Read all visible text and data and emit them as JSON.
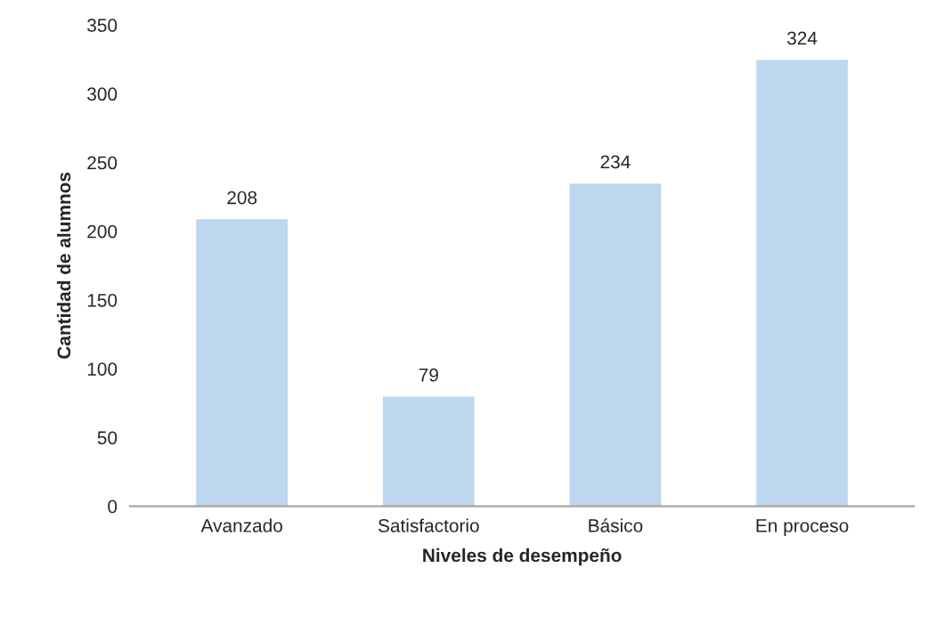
{
  "chart_data": {
    "type": "bar",
    "xlabel": "Niveles de desempeño",
    "ylabel": "Cantidad de alumnos",
    "categories": [
      "Avanzado",
      "Satisfactorio",
      "Básico",
      "En proceso"
    ],
    "values": [
      208,
      79,
      234,
      324
    ],
    "color": "#bdd7ee",
    "ylim": [
      0,
      350
    ],
    "yticks": [
      0,
      50,
      100,
      150,
      200,
      250,
      300,
      350
    ],
    "grid": false,
    "data_labels": true
  }
}
